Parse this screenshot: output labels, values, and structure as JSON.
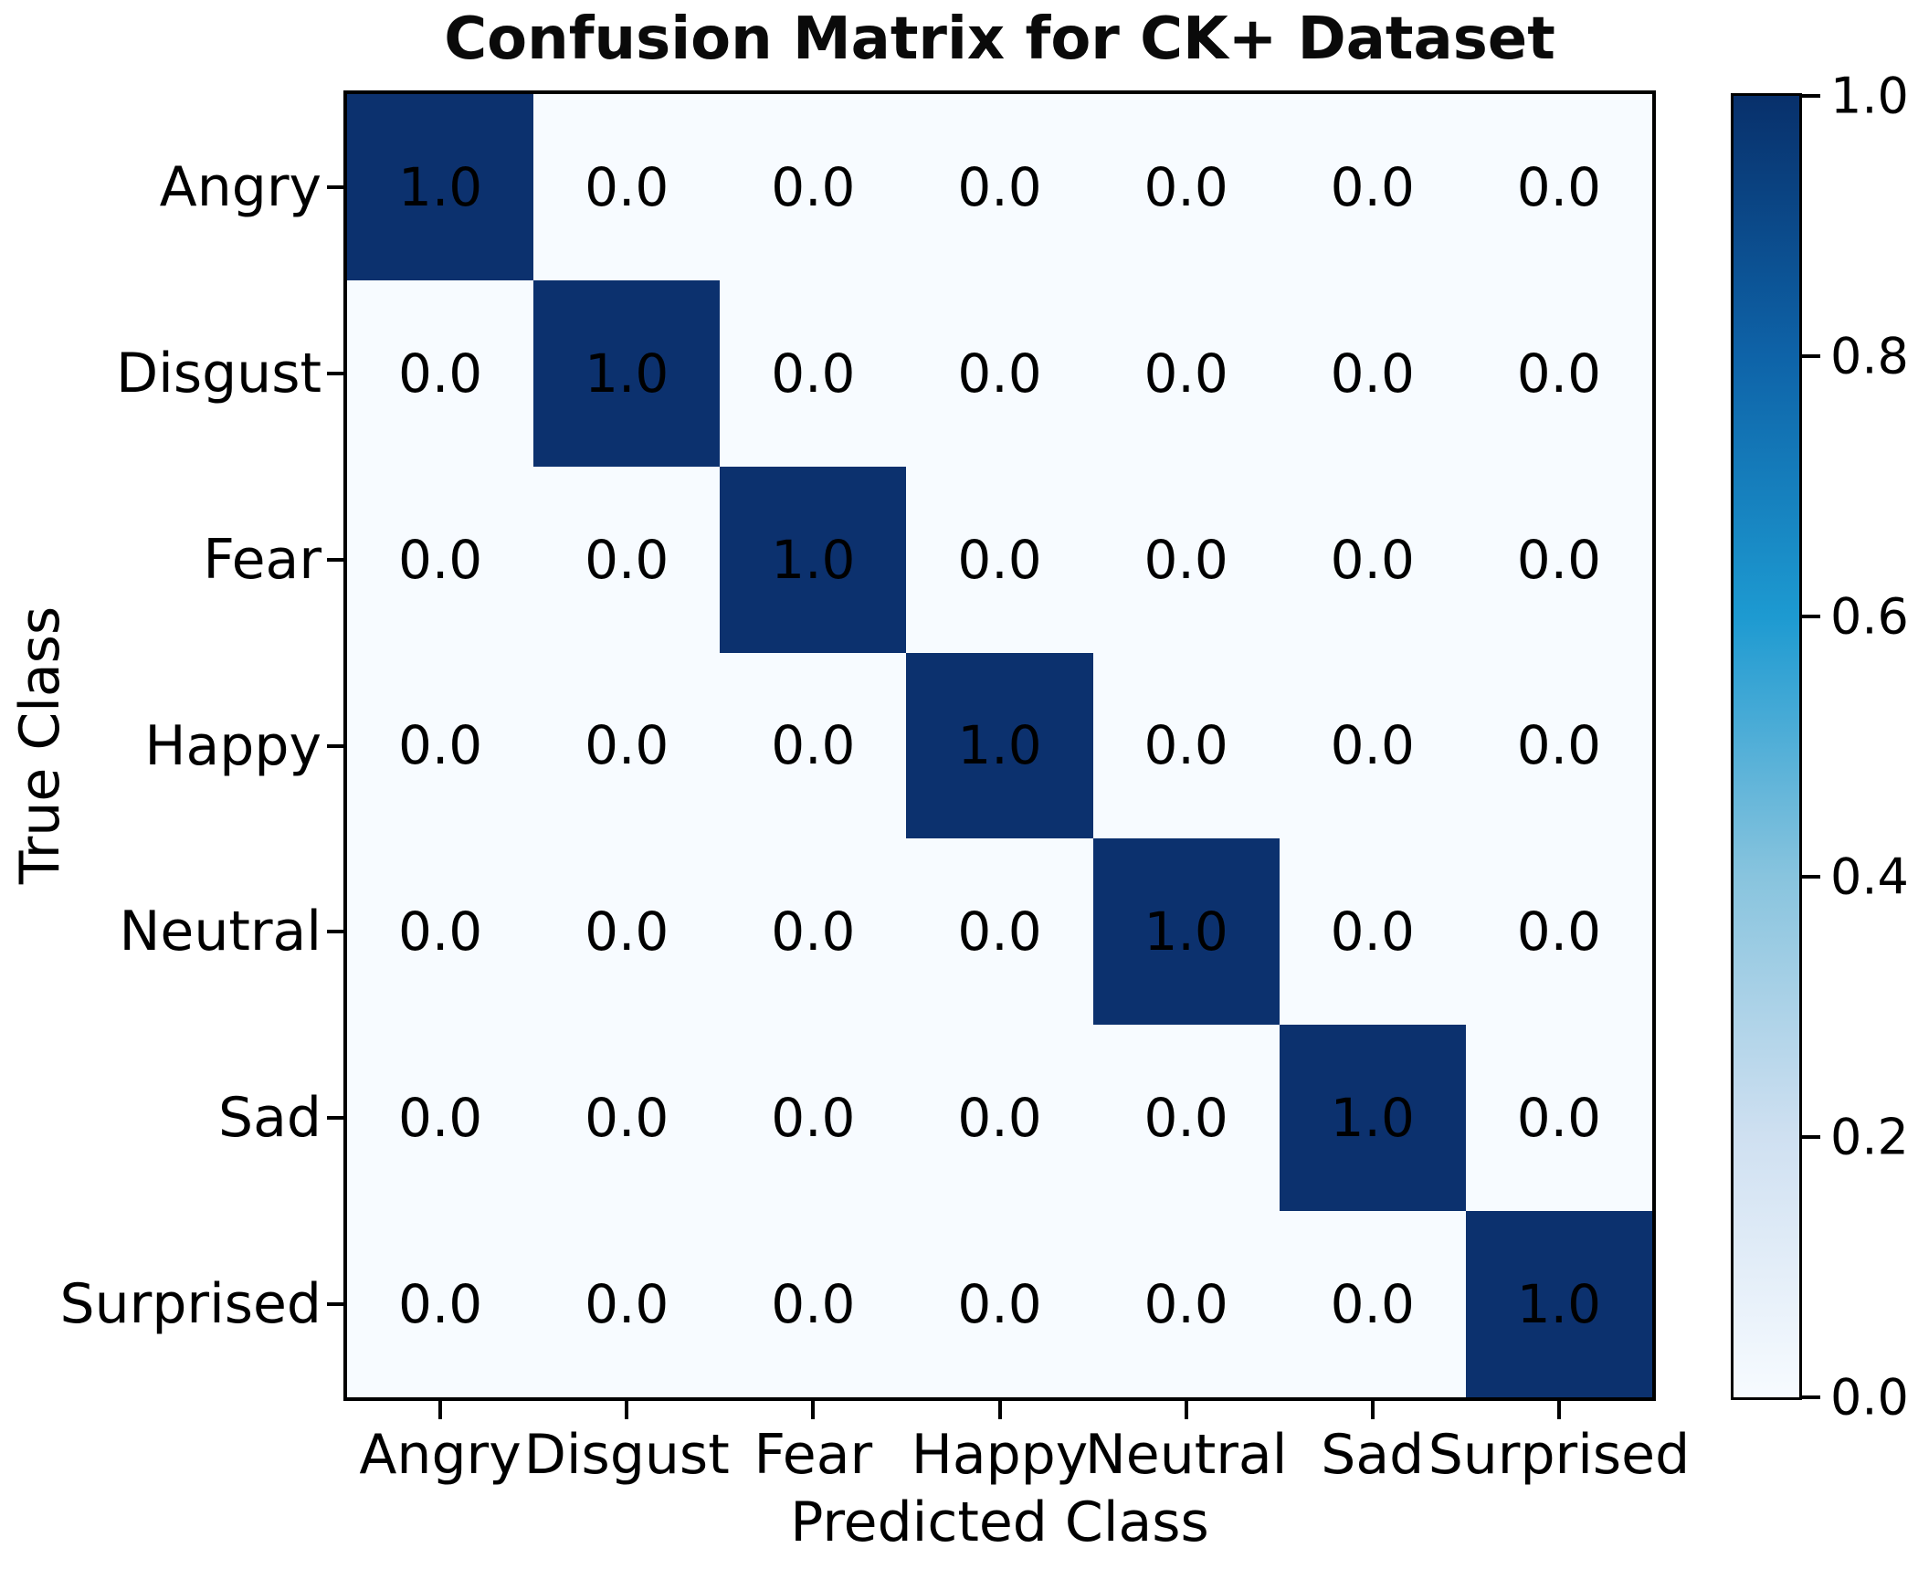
{
  "chart_data": {
    "type": "heatmap",
    "title": "Confusion Matrix for CK+ Dataset",
    "xlabel": "Predicted Class",
    "ylabel": "True Class",
    "x_categories": [
      "Angry",
      "Disgust",
      "Fear",
      "Happy",
      "Neutral",
      "Sad",
      "Surprised"
    ],
    "y_categories": [
      "Angry",
      "Disgust",
      "Fear",
      "Happy",
      "Neutral",
      "Sad",
      "Surprised"
    ],
    "matrix": [
      [
        1.0,
        0.0,
        0.0,
        0.0,
        0.0,
        0.0,
        0.0
      ],
      [
        0.0,
        1.0,
        0.0,
        0.0,
        0.0,
        0.0,
        0.0
      ],
      [
        0.0,
        0.0,
        1.0,
        0.0,
        0.0,
        0.0,
        0.0
      ],
      [
        0.0,
        0.0,
        0.0,
        1.0,
        0.0,
        0.0,
        0.0
      ],
      [
        0.0,
        0.0,
        0.0,
        0.0,
        1.0,
        0.0,
        0.0
      ],
      [
        0.0,
        0.0,
        0.0,
        0.0,
        0.0,
        1.0,
        0.0
      ],
      [
        0.0,
        0.0,
        0.0,
        0.0,
        0.0,
        0.0,
        1.0
      ]
    ],
    "value_decimals": 1,
    "colormap": "Blues",
    "colors": {
      "cell_high": "#0c316e",
      "cell_low": "#f7fbff",
      "annotation": "#000000",
      "gradient_stops": [
        {
          "value": 0.0,
          "color": "#f7fbff"
        },
        {
          "value": 0.2,
          "color": "#cfe0f1"
        },
        {
          "value": 0.4,
          "color": "#88c4de"
        },
        {
          "value": 0.6,
          "color": "#1d9ad1"
        },
        {
          "value": 0.8,
          "color": "#0e63a8"
        },
        {
          "value": 1.0,
          "color": "#08306b"
        }
      ]
    },
    "colorbar": {
      "min": 0.0,
      "max": 1.0,
      "tick_values": [
        0.0,
        0.2,
        0.4,
        0.6,
        0.8,
        1.0
      ],
      "tick_labels": [
        "0.0",
        "0.2",
        "0.4",
        "0.6",
        "0.8",
        "1.0"
      ],
      "position": "right"
    },
    "legend": "none",
    "grid": false
  }
}
